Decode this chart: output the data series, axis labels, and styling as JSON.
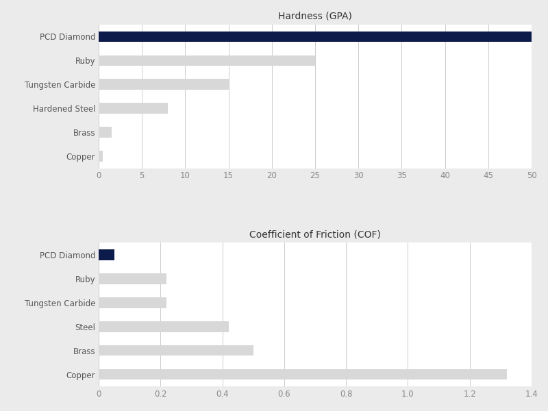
{
  "hardness": {
    "title": "Hardness (GPA)",
    "categories": [
      "PCD Diamond",
      "Ruby",
      "Tungsten Carbide",
      "Hardened Steel",
      "Brass",
      "Copper"
    ],
    "values": [
      50,
      25,
      15,
      8,
      1.5,
      0.5
    ],
    "bar_colors": [
      "#0d1b4b",
      "#d8d8d8",
      "#d8d8d8",
      "#d8d8d8",
      "#d8d8d8",
      "#d8d8d8"
    ],
    "xlim": [
      0,
      50
    ],
    "xticks": [
      0,
      5,
      10,
      15,
      20,
      25,
      30,
      35,
      40,
      45,
      50
    ]
  },
  "friction": {
    "title": "Coefficient of Friction (COF)",
    "categories": [
      "PCD Diamond",
      "Ruby",
      "Tungsten Carbide",
      "Steel",
      "Brass",
      "Copper"
    ],
    "values": [
      0.05,
      0.22,
      0.22,
      0.42,
      0.5,
      1.32
    ],
    "bar_colors": [
      "#0d1b4b",
      "#d8d8d8",
      "#d8d8d8",
      "#d8d8d8",
      "#d8d8d8",
      "#d8d8d8"
    ],
    "xlim": [
      0,
      1.4
    ],
    "xticks": [
      0,
      0.2,
      0.4,
      0.6,
      0.8,
      1.0,
      1.2,
      1.4
    ]
  },
  "background_color": "#ebebeb",
  "plot_background": "#ffffff",
  "title_fontsize": 10,
  "label_fontsize": 8.5,
  "tick_fontsize": 8.5,
  "bar_height": 0.45
}
